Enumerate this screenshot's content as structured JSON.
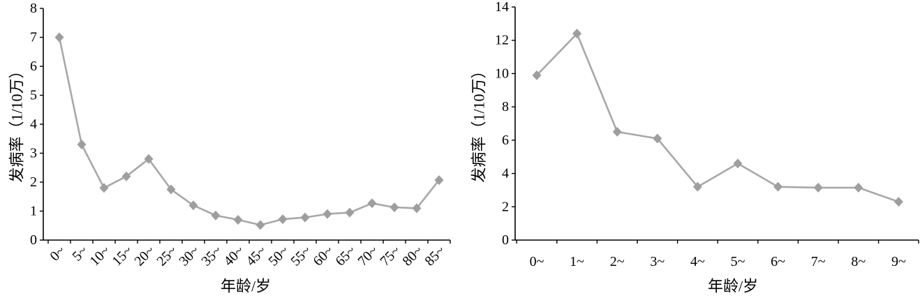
{
  "chart_data": [
    {
      "type": "line",
      "categories": [
        "0~",
        "5~",
        "10~",
        "15~",
        "20~",
        "25~",
        "30~",
        "35~",
        "40~",
        "45~",
        "50~",
        "55~",
        "60~",
        "65~",
        "70~",
        "75~",
        "80~",
        "85~"
      ],
      "values": [
        7.0,
        3.3,
        1.8,
        2.2,
        2.8,
        1.75,
        1.2,
        0.85,
        0.7,
        0.52,
        0.72,
        0.78,
        0.9,
        0.95,
        1.27,
        1.13,
        1.1,
        2.07
      ],
      "xlabel": "年龄/岁",
      "ylabel": "发病率（1/10万）",
      "ylim": [
        0,
        8
      ],
      "yticks": [
        0,
        1,
        2,
        3,
        4,
        5,
        6,
        7,
        8
      ],
      "grid": false,
      "marker": "diamond",
      "line_color": "#a8a8a8",
      "marker_color": "#9e9e9e"
    },
    {
      "type": "line",
      "categories": [
        "0~",
        "1~",
        "2~",
        "3~",
        "4~",
        "5~",
        "6~",
        "7~",
        "8~",
        "9~"
      ],
      "values": [
        9.9,
        12.4,
        6.5,
        6.1,
        3.2,
        4.6,
        3.2,
        3.15,
        3.15,
        2.3
      ],
      "xlabel": "年龄/岁",
      "ylabel": "发病率（1/10万）",
      "ylim": [
        0,
        14
      ],
      "yticks": [
        0,
        2,
        4,
        6,
        8,
        10,
        12,
        14
      ],
      "grid": false,
      "marker": "diamond",
      "line_color": "#a8a8a8",
      "marker_color": "#9e9e9e"
    }
  ]
}
